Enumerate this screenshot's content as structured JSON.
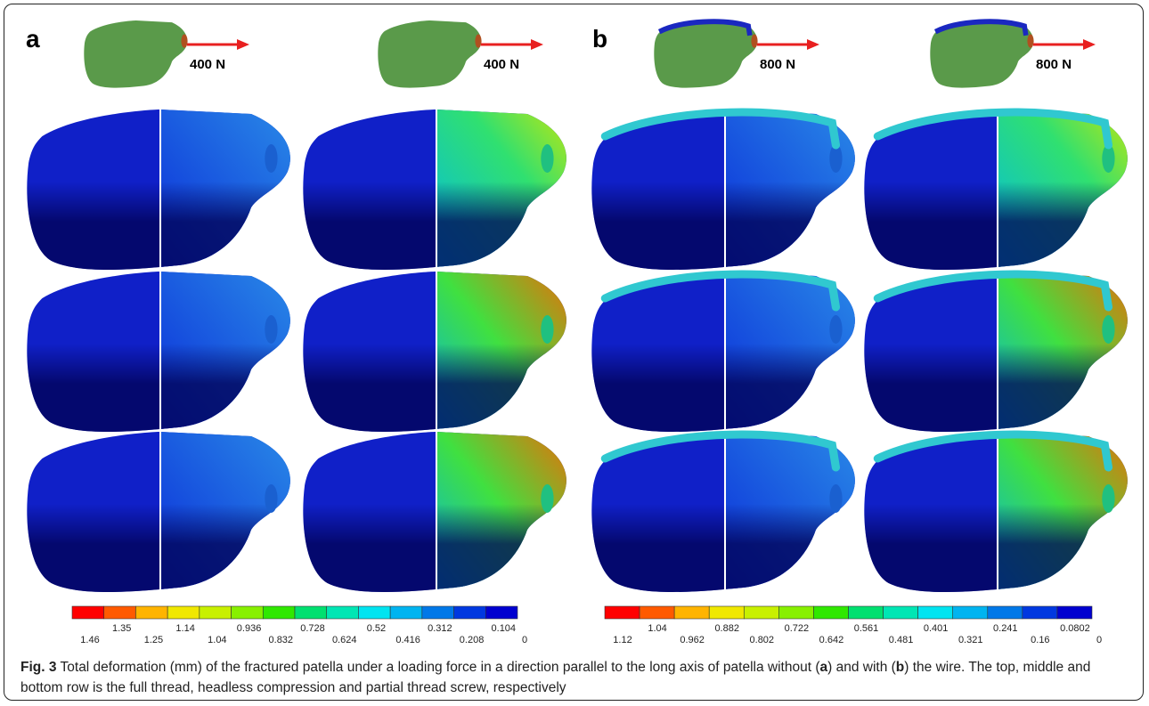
{
  "panels": [
    {
      "label": "a",
      "forces": [
        "400 N",
        "400 N"
      ],
      "colorbar": {
        "labels": [
          "1.46",
          "1.35",
          "1.25",
          "1.14",
          "1.04",
          "0.936",
          "0.832",
          "0.728",
          "0.624",
          "0.52",
          "0.416",
          "0.312",
          "0.208",
          "0.104",
          "0"
        ]
      }
    },
    {
      "label": "b",
      "forces": [
        "800 N",
        "800 N"
      ],
      "colorbar": {
        "labels": [
          "1.12",
          "1.04",
          "0.962",
          "0.882",
          "0.802",
          "0.722",
          "0.642",
          "0.561",
          "0.481",
          "0.401",
          "0.321",
          "0.241",
          "0.16",
          "0.0802",
          "0"
        ]
      }
    }
  ],
  "colorbar_colors": [
    "#ff0000",
    "#ff5a00",
    "#ffb400",
    "#f0e800",
    "#c8f000",
    "#88f000",
    "#30e800",
    "#00e070",
    "#00e6b4",
    "#00e4f0",
    "#00b4f0",
    "#0078e8",
    "#0038e0",
    "#0000d0"
  ],
  "caption": {
    "label": "Fig. 3",
    "text_1": " Total deformation (mm) of the fractured patella under a loading force in a direction parallel to the long axis of patella without (",
    "a": "a",
    "text_2": ") and with (",
    "b": "b",
    "text_3": ") the wire. The top, middle and bottom row is the full thread, headless compression and partial thread screw, respectively"
  }
}
